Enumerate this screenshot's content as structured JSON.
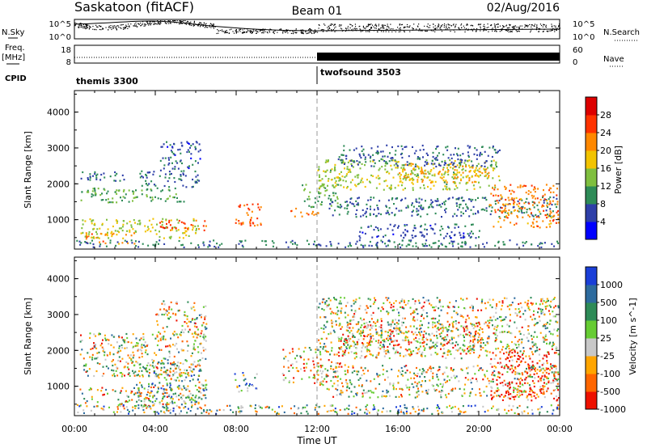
{
  "header": {
    "station": "Saskatoon (fitACF)",
    "beam": "Beam 01",
    "date": "02/Aug/2016"
  },
  "noise_panel": {
    "left_label": "N.Sky",
    "left_ticks": [
      "10^5",
      "10^0"
    ],
    "right_label": "N.Search",
    "right_ticks": [
      "10^5",
      "10^0"
    ]
  },
  "freq_panel": {
    "left_label_1": "Freq.",
    "left_label_2": "[MHz]",
    "left_ticks": [
      "18",
      "8"
    ],
    "right_label": "Nave",
    "right_ticks": [
      "60",
      "0"
    ]
  },
  "cpid_panel": {
    "label": "CPID",
    "programs": [
      {
        "name": "themis 3300",
        "start_hour": 0
      },
      {
        "name": "twofsound 3503",
        "start_hour": 12
      }
    ]
  },
  "x_axis": {
    "label": "Time UT",
    "ticks": [
      "00:00",
      "04:00",
      "08:00",
      "12:00",
      "16:00",
      "20:00",
      "00:00"
    ],
    "range_hours": [
      0,
      24
    ]
  },
  "chart_data": [
    {
      "type": "heatmap",
      "title": "",
      "quantity": "Power",
      "ylabel": "Slant Range [km]",
      "xlabel": "Time UT",
      "ylim": [
        180,
        4600
      ],
      "yticks": [
        1000,
        2000,
        3000,
        4000
      ],
      "colorbar": {
        "label": "Power [dB]",
        "tick_labels": [
          "4",
          "8",
          "12",
          "16",
          "20",
          "24",
          "28"
        ],
        "range": [
          0,
          30
        ],
        "colors": [
          "#0000ff",
          "#2e3fa8",
          "#2e8b57",
          "#7fbf3f",
          "#f2c300",
          "#ff8800",
          "#ff3300",
          "#dd0000"
        ]
      },
      "scatter_regions": [
        {
          "t0": 0.3,
          "t1": 6.1,
          "r0": 500,
          "r1": 1050,
          "v": 15
        },
        {
          "t0": 0.3,
          "t1": 5.5,
          "r0": 1500,
          "r1": 1900,
          "v": 11
        },
        {
          "t0": 0.2,
          "t1": 2.8,
          "r0": 2100,
          "r1": 2350,
          "v": 7
        },
        {
          "t0": 3.2,
          "t1": 6.2,
          "r0": 1900,
          "r1": 2400,
          "v": 7
        },
        {
          "t0": 4.2,
          "t1": 6.2,
          "r0": 2400,
          "r1": 3200,
          "v": 6
        },
        {
          "t0": 4.0,
          "t1": 6.5,
          "r0": 700,
          "r1": 1000,
          "v": 24
        },
        {
          "t0": 0.5,
          "t1": 3.0,
          "r0": 350,
          "r1": 650,
          "v": 20
        },
        {
          "t0": 0.0,
          "t1": 24.0,
          "r0": 250,
          "r1": 450,
          "v": 8
        },
        {
          "t0": 7.9,
          "t1": 9.2,
          "r0": 850,
          "r1": 1500,
          "v": 23
        },
        {
          "t0": 10.5,
          "t1": 12.1,
          "r0": 1100,
          "r1": 1350,
          "v": 22
        },
        {
          "t0": 11.2,
          "t1": 13.0,
          "r0": 1350,
          "r1": 2000,
          "v": 11
        },
        {
          "t0": 12.0,
          "t1": 21.0,
          "r0": 1850,
          "r1": 2700,
          "v": 14
        },
        {
          "t0": 16.0,
          "t1": 20.5,
          "r0": 2050,
          "r1": 2600,
          "v": 19
        },
        {
          "t0": 12.5,
          "t1": 24.0,
          "r0": 1100,
          "r1": 1650,
          "v": 8
        },
        {
          "t0": 13.0,
          "t1": 21.0,
          "r0": 2500,
          "r1": 3100,
          "v": 7
        },
        {
          "t0": 20.5,
          "t1": 24.0,
          "r0": 800,
          "r1": 2000,
          "v": 21
        },
        {
          "t0": 14.0,
          "t1": 20.0,
          "r0": 500,
          "r1": 900,
          "v": 6
        }
      ]
    },
    {
      "type": "heatmap",
      "title": "",
      "quantity": "Velocity",
      "ylabel": "Slant Range [km]",
      "xlabel": "Time UT",
      "ylim": [
        180,
        4600
      ],
      "yticks": [
        1000,
        2000,
        3000,
        4000
      ],
      "colorbar": {
        "label": "Velocity [m s^-1]",
        "tick_labels": [
          "1000",
          "500",
          "100",
          "25",
          "-25",
          "-100",
          "-500",
          "-1000"
        ],
        "colors": [
          "#1a3fd8",
          "#2d6b9e",
          "#2e8b57",
          "#66cc33",
          "#c8c8c8",
          "#ffa500",
          "#ff6600",
          "#ee1100"
        ]
      },
      "scatter_regions": [
        {
          "t0": 0.2,
          "t1": 6.5,
          "r0": 400,
          "r1": 1000,
          "v": 4
        },
        {
          "t0": 0.2,
          "t1": 6.5,
          "r0": 1300,
          "r1": 2500,
          "v": 4
        },
        {
          "t0": 4.0,
          "t1": 6.5,
          "r0": 2400,
          "r1": 3400,
          "v": 4
        },
        {
          "t0": 3.0,
          "t1": 6.5,
          "r0": 500,
          "r1": 1700,
          "v": 3
        },
        {
          "t0": 7.9,
          "t1": 9.0,
          "r0": 850,
          "r1": 1400,
          "v": 2
        },
        {
          "t0": 10.2,
          "t1": 13.5,
          "r0": 1100,
          "r1": 2100,
          "v": 5
        },
        {
          "t0": 13.0,
          "t1": 20.5,
          "r0": 1800,
          "r1": 2800,
          "v": 5
        },
        {
          "t0": 12.0,
          "t1": 24.0,
          "r0": 1900,
          "r1": 3500,
          "v": 4
        },
        {
          "t0": 12.0,
          "t1": 24.0,
          "r0": 700,
          "r1": 1600,
          "v": 4
        },
        {
          "t0": 20.5,
          "t1": 24.0,
          "r0": 600,
          "r1": 2000,
          "v": 7
        },
        {
          "t0": 0.0,
          "t1": 24.0,
          "r0": 250,
          "r1": 500,
          "v": 3
        }
      ]
    }
  ]
}
